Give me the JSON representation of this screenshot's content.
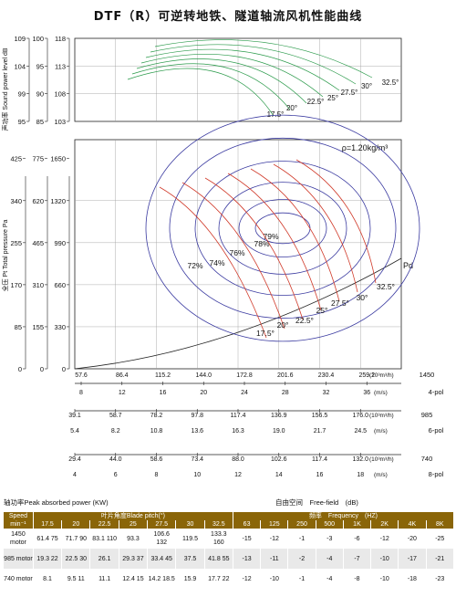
{
  "title": "DTF（R）可逆转地铁、隧道轴流风机性能曲线",
  "density": "ρ=1.20kg/m³",
  "pd_label": "Pd",
  "chart_data": {
    "type": "line",
    "sound_axis": {
      "label": "声功率 Sound power level dB",
      "scale_1450": [
        118,
        113,
        108,
        103
      ],
      "scale_985": [
        100,
        95,
        90,
        85
      ],
      "scale_740": [
        109,
        104,
        99,
        95
      ]
    },
    "pressure_axis": {
      "label": "全压 Pt Total pressure Pa",
      "scale_1450": [
        0,
        330,
        660,
        990,
        1320,
        1650
      ],
      "scale_985": [
        0,
        155,
        310,
        465,
        620,
        775
      ],
      "scale_740": [
        0,
        85,
        170,
        255,
        340,
        425
      ]
    },
    "flow_axes": [
      {
        "speed": "1450",
        "poles": "4-pol",
        "unit_flow": "(10³m³/h)",
        "unit_vel": "(m/s)",
        "flow": [
          "57.6",
          "86.4",
          "115.2",
          "144.0",
          "172.8",
          "201.6",
          "230.4",
          "259.2"
        ],
        "velocity": [
          "8",
          "12",
          "16",
          "20",
          "24",
          "28",
          "32",
          "36"
        ]
      },
      {
        "speed": "985",
        "poles": "6-pol",
        "unit_flow": "(10³m³/h)",
        "unit_vel": "(m/s)",
        "flow": [
          "39.1",
          "58.7",
          "78.2",
          "97.8",
          "117.4",
          "136.9",
          "156.5",
          "176.0"
        ],
        "velocity": [
          "5.4",
          "8.2",
          "10.8",
          "13.6",
          "16.3",
          "19.0",
          "21.7",
          "24.5"
        ]
      },
      {
        "speed": "740",
        "poles": "8-pol",
        "unit_flow": "(10³m³/h)",
        "unit_vel": "(m/s)",
        "flow": [
          "29.4",
          "44.0",
          "58.6",
          "73.4",
          "88.0",
          "102.6",
          "117.4",
          "132.0"
        ],
        "velocity": [
          "4",
          "6",
          "8",
          "10",
          "12",
          "14",
          "16",
          "18"
        ]
      }
    ],
    "blade_angles": [
      "17.5",
      "20",
      "22.5",
      "25",
      "27.5",
      "30",
      "32.5"
    ],
    "blade_angles_deg": [
      "17.5°",
      "20°",
      "22.5°",
      "25°",
      "27.5°",
      "30°",
      "32.5°"
    ],
    "efficiency_labels": [
      "79%",
      "78%",
      "76%",
      "74%",
      "72%"
    ]
  },
  "table": {
    "power_title": "轴功率Peak absorbed power (KW)",
    "free_field": "自由空间　Free-field　(dB)",
    "speed_header": "Speed min⁻¹",
    "blade_header": "叶片角度Blade pitch(°)",
    "freq_header": "频率　Frequency　(HZ)",
    "angles": [
      "17.5",
      "20",
      "22.5",
      "25",
      "27.5",
      "30",
      "32.5"
    ],
    "freqs": [
      "63",
      "125",
      "250",
      "500",
      "1K",
      "2K",
      "4K",
      "8K"
    ],
    "rows": [
      {
        "speed": "1450 motor",
        "power": [
          "61.4 75",
          "71.7 90",
          "83.1 110",
          "93.3",
          "106.6 132",
          "119.5",
          "133.3 160"
        ],
        "noise": [
          "-15",
          "-12",
          "-1",
          "-3",
          "-6",
          "-12",
          "-20",
          "-25"
        ]
      },
      {
        "speed": "985 motor",
        "power": [
          "19.3 22",
          "22.5 30",
          "26.1",
          "29.3 37",
          "33.4 45",
          "37.5",
          "41.8 55"
        ],
        "noise": [
          "-13",
          "-11",
          "-2",
          "-4",
          "-7",
          "-10",
          "-17",
          "-21"
        ]
      },
      {
        "speed": "740 motor",
        "power": [
          "8.1",
          "9.5 11",
          "11.1",
          "12.4 15",
          "14.2 18.5",
          "15.9",
          "17.7 22"
        ],
        "noise": [
          "-12",
          "-10",
          "-1",
          "-4",
          "-8",
          "-10",
          "-18",
          "-23"
        ]
      }
    ]
  }
}
